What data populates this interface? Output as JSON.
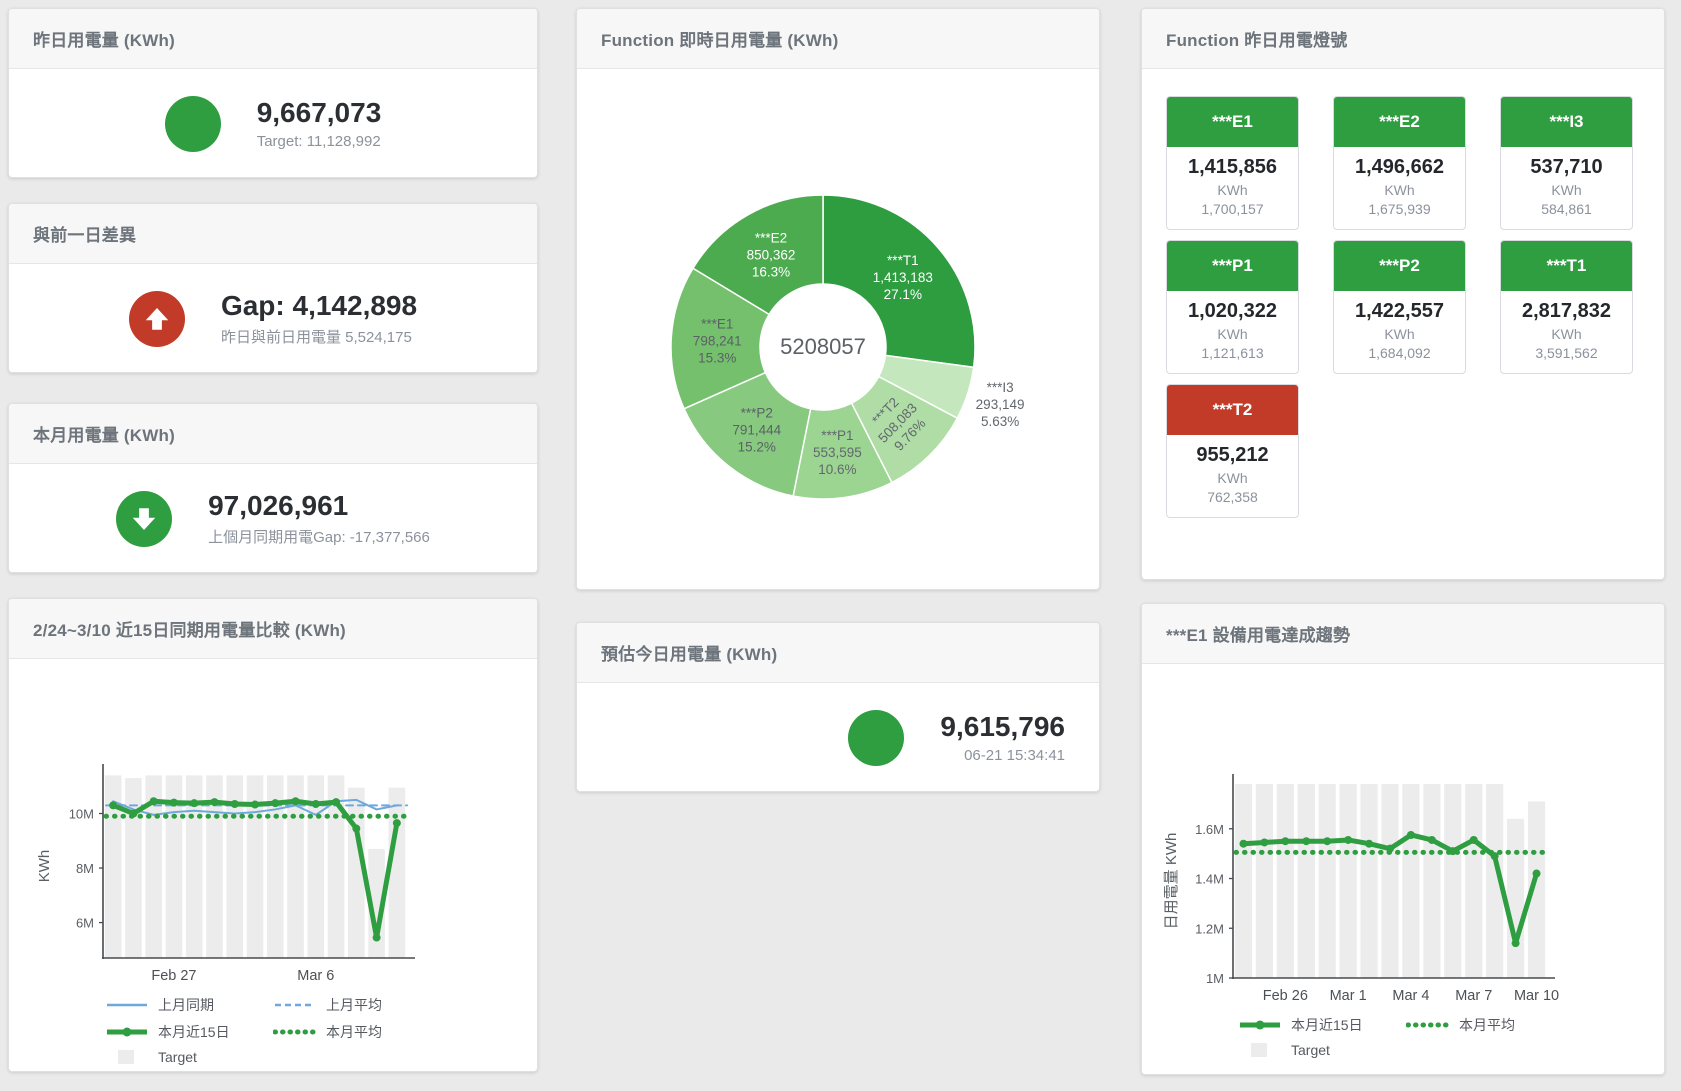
{
  "colors": {
    "green": "#2f9e41",
    "red": "#c23b28",
    "blue": "#6fa8dc",
    "bar": "#ececec",
    "page_bg": "#eaeaea",
    "title_text": "#6d747b",
    "value_text": "#2b2f33",
    "muted_text": "#8b929c"
  },
  "cards": {
    "yesterday": {
      "title": "昨日用電量 (KWh)",
      "value": "9,667,073",
      "subtitle": "Target: 11,128,992",
      "status": "green"
    },
    "day_gap": {
      "title": "與前一日差異",
      "value": "Gap: 4,142,898",
      "subtitle": "昨日與前日用電量 5,524,175",
      "status": "red",
      "direction": "up"
    },
    "month": {
      "title": "本月用電量 (KWh)",
      "value": "97,026,961",
      "subtitle": "上個月同期用電Gap: -17,377,566",
      "status": "green",
      "direction": "down"
    },
    "estimate": {
      "title": "預估今日用電量 (KWh)",
      "value": "9,615,796",
      "subtitle": "06-21 15:34:41",
      "status": "green"
    },
    "realtime_donut": {
      "title": "Function 即時日用電量 (KWh)"
    },
    "lights": {
      "title": "Function 昨日用電燈號",
      "tiles": [
        {
          "name": "***E1",
          "value": "1,415,856",
          "unit": "KWh",
          "target": "1,700,157",
          "status": "green"
        },
        {
          "name": "***E2",
          "value": "1,496,662",
          "unit": "KWh",
          "target": "1,675,939",
          "status": "green"
        },
        {
          "name": "***I3",
          "value": "537,710",
          "unit": "KWh",
          "target": "584,861",
          "status": "green"
        },
        {
          "name": "***P1",
          "value": "1,020,322",
          "unit": "KWh",
          "target": "1,121,613",
          "status": "green"
        },
        {
          "name": "***P2",
          "value": "1,422,557",
          "unit": "KWh",
          "target": "1,684,092",
          "status": "green"
        },
        {
          "name": "***T1",
          "value": "2,817,832",
          "unit": "KWh",
          "target": "3,591,562",
          "status": "green"
        },
        {
          "name": "***T2",
          "value": "955,212",
          "unit": "KWh",
          "target": "762,358",
          "status": "red"
        }
      ]
    },
    "compare15": {
      "title": "2/24~3/10 近15日同期用電量比較 (KWh)"
    },
    "e1_trend": {
      "title": "***E1 設備用電達成趨勢"
    }
  },
  "chart_data": [
    {
      "id": "donut",
      "type": "pie",
      "title": "Function 即時日用電量 (KWh)",
      "center_label": "5208057",
      "slices": [
        {
          "label": "***T1",
          "value": 1413183,
          "display": "1,413,183",
          "pct": "27.1%",
          "color": "#2e9d40",
          "text_color": "#ffffff"
        },
        {
          "label": "***I3",
          "value": 293149,
          "display": "293,149",
          "pct": "5.63%",
          "color": "#c5e7bd",
          "text_color": "#61686d",
          "label_r": 186
        },
        {
          "label": "***T2",
          "value": 508083,
          "display": "508,083",
          "pct": "9.76%",
          "color": "#afdda5",
          "text_color": "#61686d",
          "rotate": -46
        },
        {
          "label": "***P1",
          "value": 553595,
          "display": "553,595",
          "pct": "10.6%",
          "color": "#9cd492",
          "text_color": "#61686d"
        },
        {
          "label": "***P2",
          "value": 791444,
          "display": "791,444",
          "pct": "15.2%",
          "color": "#87c97e",
          "text_color": "#5a6166"
        },
        {
          "label": "***E1",
          "value": 798241,
          "display": "798,241",
          "pct": "15.3%",
          "color": "#74c06c",
          "text_color": "#5a6166"
        },
        {
          "label": "***E2",
          "value": 850362,
          "display": "850,362",
          "pct": "16.3%",
          "color": "#4cab4e",
          "text_color": "#ffffff"
        }
      ]
    },
    {
      "id": "compare",
      "type": "line+bar",
      "title": "2/24~3/10 近15日同期用電量比較 (KWh)",
      "ylabel": "KWh",
      "unit": "millions KWh",
      "ylim": [
        4.7,
        11.45
      ],
      "x_count": 15,
      "x_ticks": [
        {
          "i": 3,
          "label": "Feb 27"
        },
        {
          "i": 10,
          "label": "Mar 6"
        }
      ],
      "y_ticks": [
        {
          "v": 6,
          "label": "6M"
        },
        {
          "v": 8,
          "label": "8M"
        },
        {
          "v": 10,
          "label": "10M"
        }
      ],
      "bars": {
        "name": "Target",
        "color": "#ececec",
        "values": [
          11.4,
          11.3,
          11.4,
          11.4,
          11.4,
          11.4,
          11.4,
          11.4,
          11.4,
          11.4,
          11.4,
          11.4,
          10.95,
          8.7,
          10.95
        ]
      },
      "series": [
        {
          "name": "上月同期",
          "color": "#6fa8dc",
          "width": 2,
          "values": [
            10.45,
            10.15,
            9.95,
            10.05,
            10.1,
            10.05,
            10.0,
            10.05,
            10.15,
            10.3,
            9.95,
            10.45,
            10.5,
            10.15,
            10.3
          ]
        },
        {
          "name": "上月平均",
          "color": "#6fa8dc",
          "width": 2,
          "dash": "7 5",
          "value": 10.3
        },
        {
          "name": "本月平均",
          "color": "#2f9e41",
          "width": 5,
          "dash": "0.5 8",
          "value": 9.9
        },
        {
          "name": "本月近15日",
          "color": "#2f9e41",
          "width": 5,
          "markers": true,
          "values": [
            10.3,
            10.0,
            10.45,
            10.4,
            10.38,
            10.42,
            10.35,
            10.33,
            10.38,
            10.45,
            10.35,
            10.42,
            9.45,
            5.45,
            9.65
          ]
        }
      ],
      "legend": [
        {
          "label": "上月同期",
          "swatch": "line",
          "color": "#6fa8dc"
        },
        {
          "label": "上月平均",
          "swatch": "dash",
          "color": "#6fa8dc"
        },
        {
          "label": "本月近15日",
          "swatch": "thick",
          "color": "#2f9e41"
        },
        {
          "label": "本月平均",
          "swatch": "dots",
          "color": "#2f9e41"
        },
        {
          "label": "Target",
          "swatch": "box",
          "color": "#ececec"
        }
      ]
    },
    {
      "id": "trend",
      "type": "line+bar",
      "title": "***E1 設備用電達成趨勢",
      "ylabel": "日用電量 KWh",
      "unit": "millions KWh",
      "ylim": [
        1.0,
        1.78
      ],
      "x_count": 15,
      "x_ticks": [
        {
          "i": 2,
          "label": "Feb 26"
        },
        {
          "i": 5,
          "label": "Mar 1"
        },
        {
          "i": 8,
          "label": "Mar 4"
        },
        {
          "i": 11,
          "label": "Mar 7"
        },
        {
          "i": 14,
          "label": "Mar 10"
        }
      ],
      "y_ticks": [
        {
          "v": 1.0,
          "label": "1M"
        },
        {
          "v": 1.2,
          "label": "1.2M"
        },
        {
          "v": 1.4,
          "label": "1.4M"
        },
        {
          "v": 1.6,
          "label": "1.6M"
        }
      ],
      "bars": {
        "name": "Target",
        "color": "#ececec",
        "values": [
          1.78,
          1.78,
          1.78,
          1.78,
          1.78,
          1.78,
          1.78,
          1.78,
          1.78,
          1.78,
          1.78,
          1.78,
          1.78,
          1.64,
          1.71
        ]
      },
      "series": [
        {
          "name": "本月平均",
          "color": "#2f9e41",
          "width": 5,
          "dash": "0.5 8",
          "value": 1.505
        },
        {
          "name": "本月近15日",
          "color": "#2f9e41",
          "width": 5,
          "markers": true,
          "values": [
            1.54,
            1.545,
            1.55,
            1.55,
            1.55,
            1.555,
            1.54,
            1.52,
            1.575,
            1.555,
            1.51,
            1.555,
            1.49,
            1.14,
            1.42
          ]
        }
      ],
      "legend": [
        {
          "label": "本月近15日",
          "swatch": "thick",
          "color": "#2f9e41"
        },
        {
          "label": "本月平均",
          "swatch": "dots",
          "color": "#2f9e41"
        },
        {
          "label": "Target",
          "swatch": "box",
          "color": "#ececec"
        }
      ]
    }
  ]
}
